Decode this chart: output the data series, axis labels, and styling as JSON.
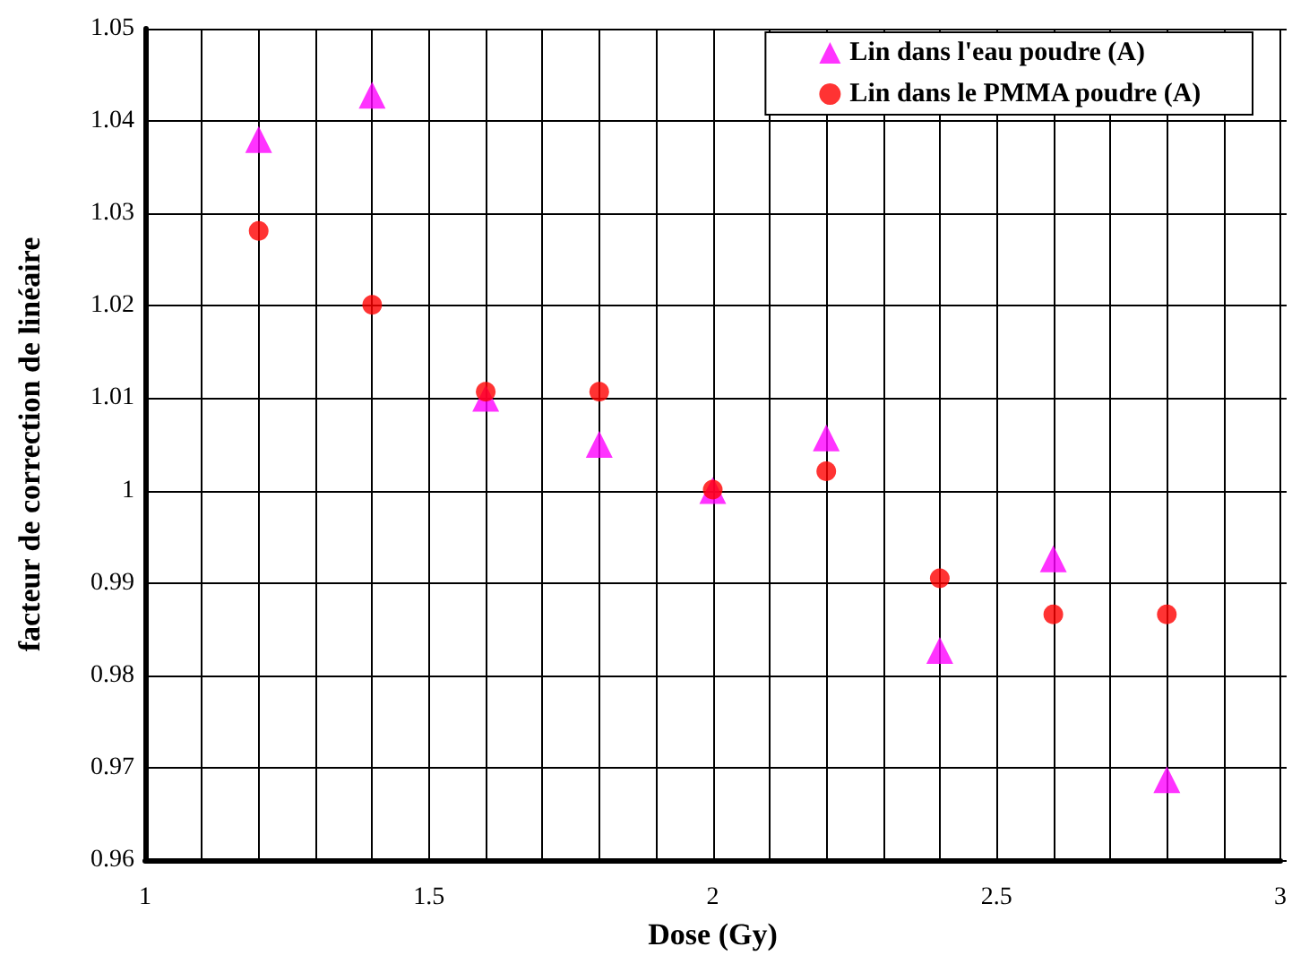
{
  "chart_data": {
    "type": "scatter",
    "xlabel": "Dose (Gy)",
    "ylabel": "facteur de correction de linéaire",
    "x": [
      1.2,
      1.4,
      1.6,
      1.8,
      2.0,
      2.2,
      2.4,
      2.6,
      2.8
    ],
    "series": [
      {
        "name": "Lin dans l'eau poudre (A)",
        "color": "#ff00ff",
        "marker": "triangle",
        "values": [
          1.038,
          1.0428,
          1.01,
          1.005,
          1.0,
          1.0057,
          0.9827,
          0.9926,
          0.9687
        ]
      },
      {
        "name": "Lin dans le PMMA poudre (A)",
        "color": "#ff0000",
        "marker": "circle",
        "values": [
          1.0281,
          1.0201,
          1.0107,
          1.0107,
          1.0001,
          1.0021,
          0.9905,
          0.9866,
          0.9866
        ]
      }
    ],
    "xlim": [
      1,
      3
    ],
    "xticks": [
      1,
      {
        "value": 1.1,
        "label": null
      },
      {
        "value": 1.2,
        "label": null
      },
      {
        "value": 1.3,
        "label": null
      },
      {
        "value": 1.4,
        "label": null
      },
      1.5,
      {
        "value": 1.6,
        "label": null
      },
      {
        "value": 1.7,
        "label": null
      },
      {
        "value": 1.8,
        "label": null
      },
      {
        "value": 1.9,
        "label": null
      },
      2,
      {
        "value": 2.1,
        "label": null
      },
      {
        "value": 2.2,
        "label": null
      },
      {
        "value": 2.3,
        "label": null
      },
      {
        "value": 2.4,
        "label": null
      },
      2.5,
      {
        "value": 2.6,
        "label": null
      },
      {
        "value": 2.7,
        "label": null
      },
      {
        "value": 2.8,
        "label": null
      },
      {
        "value": 2.9,
        "label": null
      },
      3
    ],
    "ylim": [
      0.96,
      1.05
    ],
    "yticks": [
      0.96,
      0.97,
      0.98,
      0.99,
      1,
      1.01,
      1.02,
      1.03,
      1.04,
      1.05
    ],
    "grid": true,
    "legend": "top right"
  }
}
